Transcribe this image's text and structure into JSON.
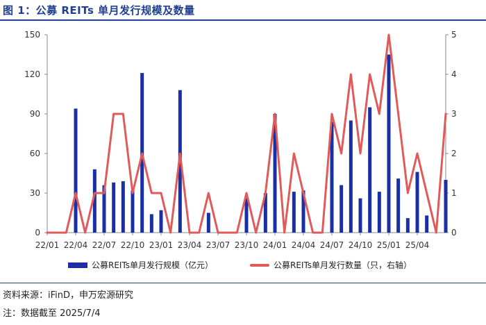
{
  "title": "图 1：公募 REITs 单月发行规模及数量",
  "source_note": "资料来源：iFinD，申万宏源研究",
  "date_note": "注：数据截至 2025/7/4",
  "chart_data": {
    "type": "bar",
    "x": [
      "22/01",
      "22/02",
      "22/03",
      "22/04",
      "22/05",
      "22/06",
      "22/07",
      "22/08",
      "22/09",
      "22/10",
      "22/11",
      "22/12",
      "23/01",
      "23/02",
      "23/03",
      "23/04",
      "23/05",
      "23/06",
      "23/07",
      "23/08",
      "23/09",
      "23/10",
      "23/11",
      "23/12",
      "24/01",
      "24/02",
      "24/03",
      "24/04",
      "24/05",
      "24/06",
      "24/07",
      "24/08",
      "24/09",
      "24/10",
      "24/11",
      "24/12",
      "25/01",
      "25/02",
      "25/03",
      "25/04",
      "25/05",
      "25/06",
      "25/07"
    ],
    "x_tick_labels": [
      "22/01",
      "22/04",
      "22/07",
      "22/10",
      "23/01",
      "23/04",
      "23/07",
      "23/10",
      "24/01",
      "24/04",
      "24/07",
      "24/10",
      "25/01",
      "25/04"
    ],
    "series": [
      {
        "name": "公募REITs单月发行规模（亿元）",
        "type": "bar",
        "axis": "left",
        "values": [
          0,
          0,
          0,
          94,
          0,
          48,
          36,
          38,
          39,
          32,
          121,
          14,
          17,
          0,
          108,
          0,
          0,
          15,
          0,
          0,
          0,
          26,
          0,
          30,
          90,
          0,
          31,
          32,
          0,
          0,
          84,
          36,
          85,
          26,
          95,
          31,
          135,
          41,
          11,
          46,
          13,
          0,
          40
        ]
      },
      {
        "name": "公募REITs单月发行数量（只，右轴）",
        "type": "line",
        "axis": "right",
        "values": [
          0,
          0,
          0,
          1,
          0,
          1,
          1,
          3,
          3,
          1,
          2,
          1,
          1,
          0,
          2,
          0,
          0,
          1,
          0,
          0,
          0,
          1,
          0,
          1,
          3,
          0,
          2,
          1,
          0,
          0,
          3,
          2,
          4,
          2,
          4,
          3,
          5,
          3,
          1,
          2,
          1,
          0,
          3
        ]
      }
    ],
    "ylim_left": [
      0,
      150
    ],
    "yticks_left": [
      0,
      30,
      60,
      90,
      120,
      150
    ],
    "ylim_right": [
      0,
      5
    ],
    "yticks_right": [
      0,
      1,
      2,
      3,
      4,
      5
    ],
    "grid": false,
    "legend_position": "bottom",
    "colors": {
      "bar": "#1a2fa3",
      "line": "#e05a5a"
    }
  }
}
